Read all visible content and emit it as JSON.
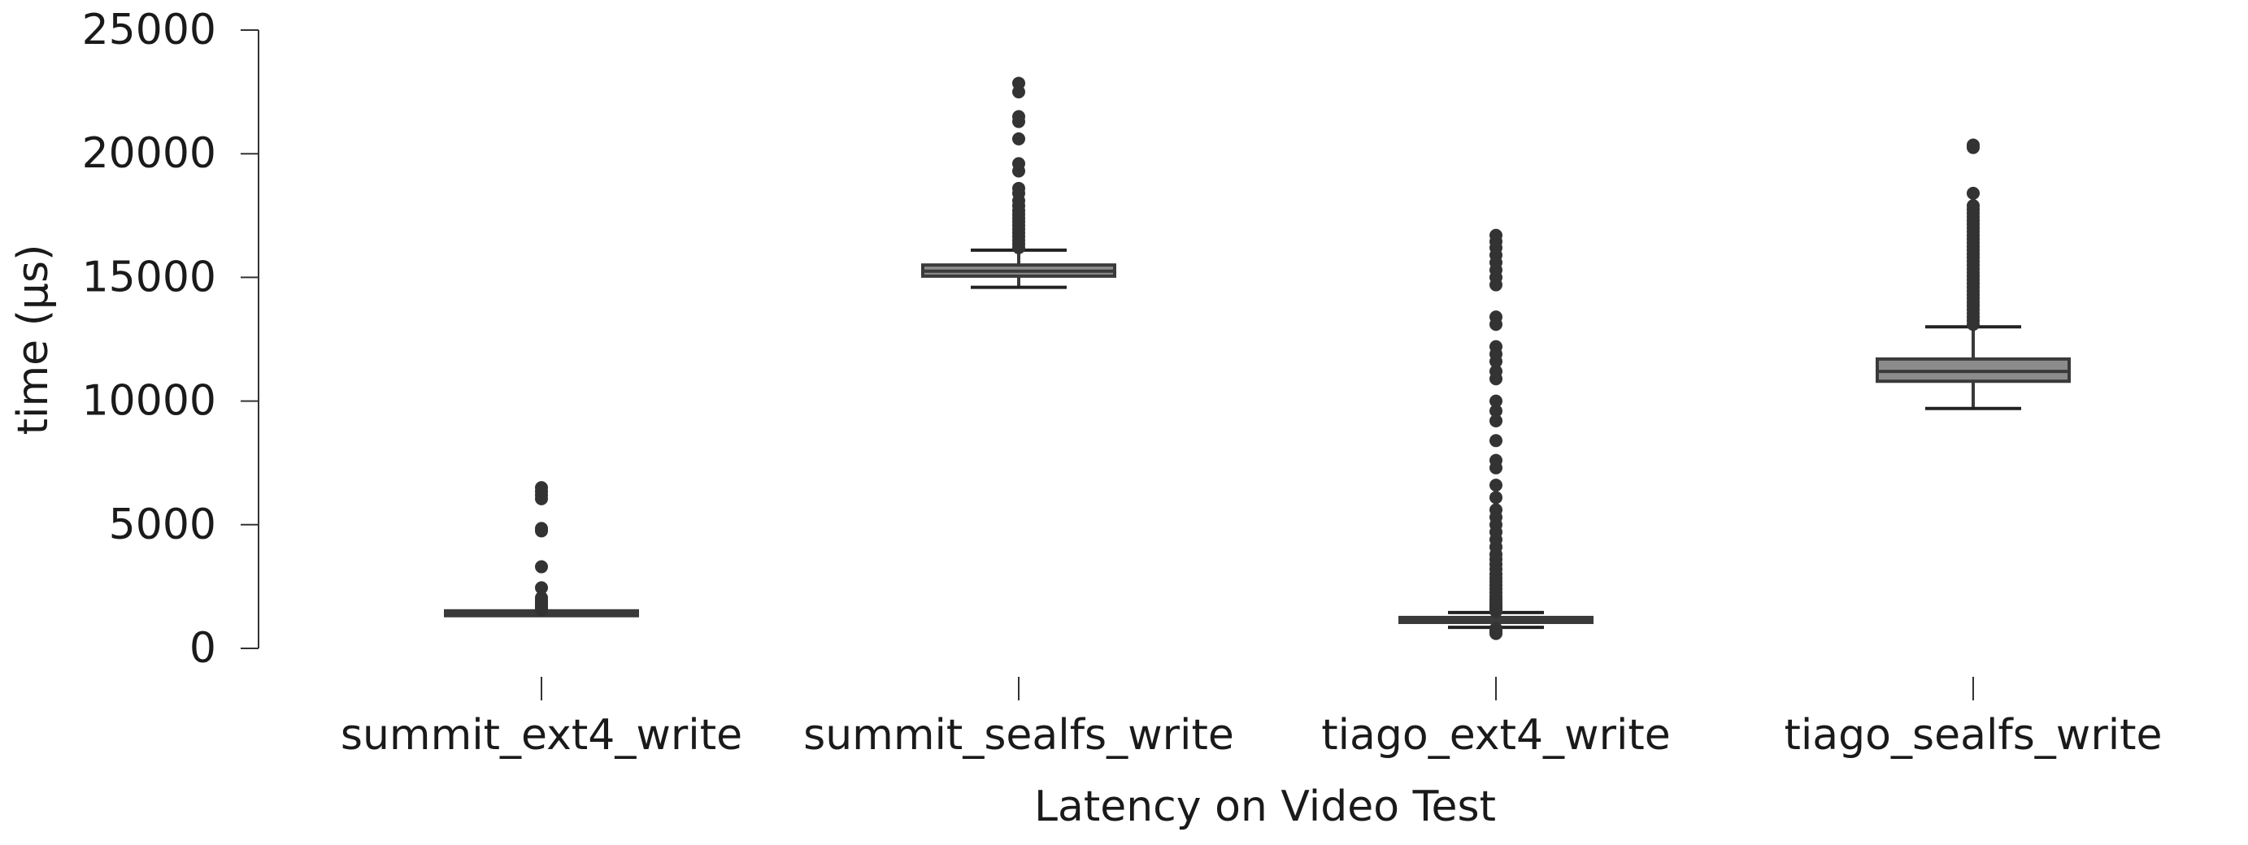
{
  "chart_data": {
    "type": "box",
    "xlabel": "Latency on Video Test",
    "ylabel": "time (µs)",
    "ylim": [
      0,
      25000
    ],
    "yticks": [
      0,
      5000,
      10000,
      15000,
      20000,
      25000
    ],
    "grid": false,
    "legend": "none",
    "colors": {
      "box_outline": "#3a3a3a",
      "box_fill": "#8c8c8c",
      "outlier": "#333333"
    },
    "categories": [
      "summit_ext4_write",
      "summit_sealfs_write",
      "tiago_ext4_write",
      "tiago_sealfs_write"
    ],
    "boxes": [
      {
        "category": "summit_ext4_write",
        "whisker_low": 1350,
        "q1": 1390,
        "median": 1420,
        "q3": 1450,
        "whisker_high": 1500,
        "outliers": [
          1550,
          1600,
          1650,
          1700,
          1750,
          1800,
          1850,
          1950,
          2050,
          2450,
          3300,
          4750,
          4850,
          6050,
          6200,
          6350,
          6500
        ]
      },
      {
        "category": "summit_sealfs_write",
        "whisker_low": 14600,
        "q1": 15050,
        "median": 15250,
        "q3": 15500,
        "whisker_high": 16100,
        "outliers": [
          16200,
          16350,
          16500,
          16650,
          16800,
          16950,
          17100,
          17250,
          17400,
          17550,
          17700,
          17900,
          18100,
          18400,
          18600,
          19300,
          19600,
          20600,
          21300,
          21500,
          22500,
          22850
        ]
      },
      {
        "category": "tiago_ext4_write",
        "whisker_low": 850,
        "q1": 1050,
        "median": 1150,
        "q3": 1250,
        "whisker_high": 1450,
        "outliers": [
          600,
          650,
          700,
          750,
          800,
          1500,
          1550,
          1600,
          1650,
          1700,
          1750,
          1800,
          1900,
          2000,
          2100,
          2250,
          2400,
          2550,
          2700,
          2850,
          3000,
          3200,
          3400,
          3600,
          3800,
          4100,
          4400,
          4700,
          5000,
          5300,
          5600,
          6100,
          6600,
          7300,
          7600,
          8400,
          9200,
          9600,
          10000,
          10900,
          11200,
          11600,
          11900,
          12200,
          13100,
          13400,
          14700,
          15000,
          15300,
          15600,
          15900,
          16200,
          16450,
          16700
        ]
      },
      {
        "category": "tiago_sealfs_write",
        "whisker_low": 9700,
        "q1": 10800,
        "median": 11200,
        "q3": 11700,
        "whisker_high": 13000,
        "outliers": [
          13100,
          13250,
          13400,
          13550,
          13700,
          13850,
          14000,
          14150,
          14300,
          14450,
          14600,
          14750,
          14900,
          15050,
          15200,
          15350,
          15500,
          15650,
          15800,
          15950,
          16100,
          16250,
          16400,
          16550,
          16700,
          16850,
          17000,
          17150,
          17300,
          17450,
          17600,
          17750,
          17900,
          18400,
          20250,
          20350
        ]
      }
    ]
  }
}
